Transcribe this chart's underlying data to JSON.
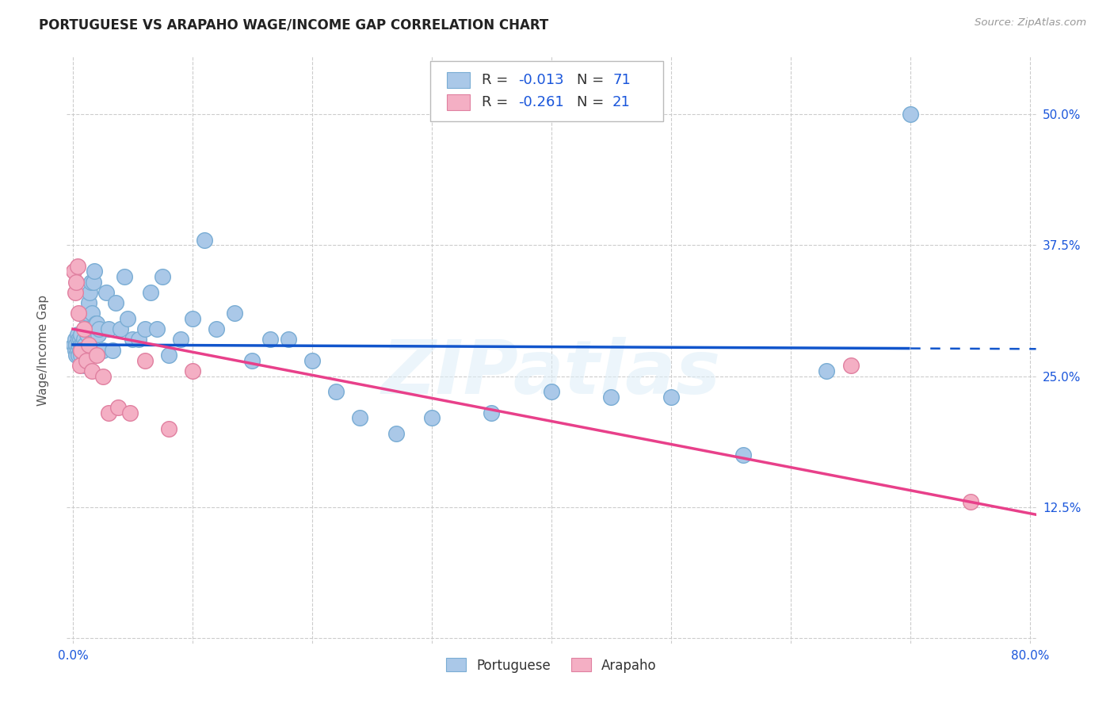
{
  "title": "PORTUGUESE VS ARAPAHO WAGE/INCOME GAP CORRELATION CHART",
  "source": "Source: ZipAtlas.com",
  "ylabel": "Wage/Income Gap",
  "xlim": [
    -0.005,
    0.805
  ],
  "ylim": [
    -0.005,
    0.555
  ],
  "xticks": [
    0.0,
    0.1,
    0.2,
    0.3,
    0.4,
    0.5,
    0.6,
    0.7,
    0.8
  ],
  "xticklabels": [
    "0.0%",
    "",
    "",
    "",
    "",
    "",
    "",
    "",
    "80.0%"
  ],
  "yticks": [
    0.0,
    0.125,
    0.25,
    0.375,
    0.5
  ],
  "right_yticklabels": [
    "",
    "12.5%",
    "25.0%",
    "37.5%",
    "50.0%"
  ],
  "watermark": "ZIPatlas",
  "portuguese_color": "#aac8e8",
  "portuguese_edge": "#7aadd4",
  "arapaho_color": "#f4afc4",
  "arapaho_edge": "#e080a0",
  "portuguese_line_color": "#1155cc",
  "arapaho_line_color": "#e8408a",
  "grid_color": "#cccccc",
  "r_portuguese": -0.013,
  "n_portuguese": 71,
  "r_arapaho": -0.261,
  "n_arapaho": 21,
  "portuguese_x": [
    0.001,
    0.002,
    0.002,
    0.003,
    0.003,
    0.004,
    0.004,
    0.005,
    0.005,
    0.005,
    0.006,
    0.006,
    0.007,
    0.007,
    0.007,
    0.008,
    0.008,
    0.009,
    0.009,
    0.01,
    0.01,
    0.011,
    0.011,
    0.012,
    0.012,
    0.013,
    0.014,
    0.015,
    0.015,
    0.016,
    0.017,
    0.018,
    0.019,
    0.02,
    0.021,
    0.022,
    0.025,
    0.028,
    0.03,
    0.033,
    0.036,
    0.04,
    0.043,
    0.046,
    0.05,
    0.055,
    0.06,
    0.065,
    0.07,
    0.075,
    0.08,
    0.09,
    0.1,
    0.11,
    0.12,
    0.135,
    0.15,
    0.165,
    0.18,
    0.2,
    0.22,
    0.24,
    0.27,
    0.3,
    0.35,
    0.4,
    0.45,
    0.5,
    0.56,
    0.63,
    0.7
  ],
  "portuguese_y": [
    0.28,
    0.275,
    0.285,
    0.27,
    0.28,
    0.29,
    0.275,
    0.28,
    0.27,
    0.285,
    0.275,
    0.285,
    0.28,
    0.27,
    0.29,
    0.275,
    0.28,
    0.285,
    0.27,
    0.28,
    0.26,
    0.295,
    0.305,
    0.31,
    0.29,
    0.32,
    0.33,
    0.34,
    0.295,
    0.31,
    0.34,
    0.35,
    0.3,
    0.3,
    0.29,
    0.295,
    0.275,
    0.33,
    0.295,
    0.275,
    0.32,
    0.295,
    0.345,
    0.305,
    0.285,
    0.285,
    0.295,
    0.33,
    0.295,
    0.345,
    0.27,
    0.285,
    0.305,
    0.38,
    0.295,
    0.31,
    0.265,
    0.285,
    0.285,
    0.265,
    0.235,
    0.21,
    0.195,
    0.21,
    0.215,
    0.235,
    0.23,
    0.23,
    0.175,
    0.255,
    0.5
  ],
  "arapaho_x": [
    0.001,
    0.002,
    0.003,
    0.004,
    0.005,
    0.006,
    0.007,
    0.009,
    0.011,
    0.013,
    0.016,
    0.02,
    0.025,
    0.03,
    0.038,
    0.048,
    0.06,
    0.08,
    0.1,
    0.65,
    0.75
  ],
  "arapaho_y": [
    0.35,
    0.33,
    0.34,
    0.355,
    0.31,
    0.26,
    0.275,
    0.295,
    0.265,
    0.28,
    0.255,
    0.27,
    0.25,
    0.215,
    0.22,
    0.215,
    0.265,
    0.2,
    0.255,
    0.26,
    0.13
  ],
  "portuguese_line_x_solid_end": 0.7,
  "portuguese_line_intercept": 0.28,
  "portuguese_line_slope": -0.005,
  "arapaho_line_intercept": 0.295,
  "arapaho_line_slope": -0.22
}
